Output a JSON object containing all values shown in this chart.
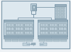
{
  "bg_color": "#dde8ef",
  "outer_bg": "#eef2f5",
  "line_color": "#7a96a8",
  "box_color": "#c5d6e0",
  "box_border": "#7a96a8",
  "dark_box": "#9ab0be",
  "reactor_color": "#c5d6e0",
  "panel_bg": "#c5d6e0",
  "panel_border": "#7a96a8",
  "cell_color": "#b0c4ce",
  "cell_border": "#8aa0ae",
  "small_box_color": "#c0d2dc",
  "connector_color": "#b8cad4"
}
